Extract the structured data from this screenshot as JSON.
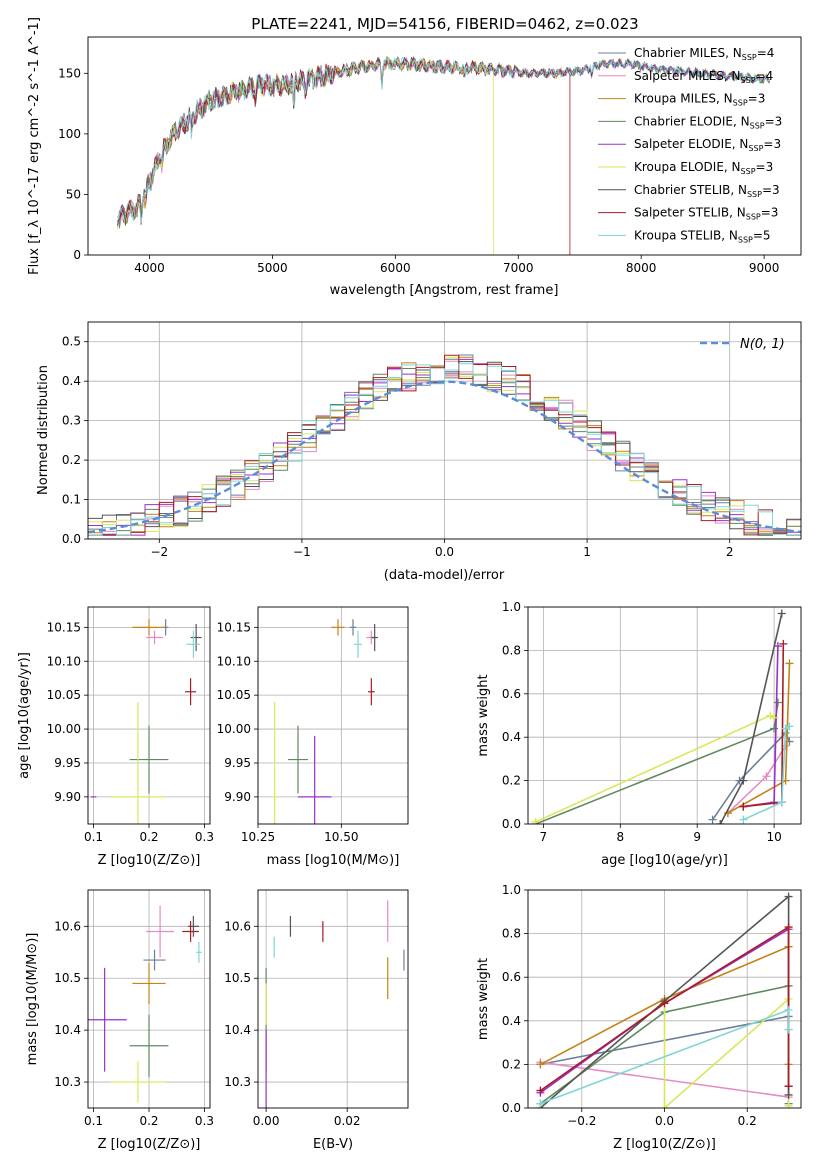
{
  "figure": {
    "title": "PLATE=2241, MJD=54156, FIBERID=0462, z=0.023"
  },
  "series": [
    {
      "name": "Chabrier MILES, N$_{SSP}$=4",
      "color": "#6c7f9a"
    },
    {
      "name": "Salpeter MILES, N$_{SSP}$=4",
      "color": "#e78ac3"
    },
    {
      "name": "Kroupa MILES, N$_{SSP}$=3",
      "color": "#c48316"
    },
    {
      "name": "Chabrier ELODIE, N$_{SSP}$=3",
      "color": "#5f8a5f"
    },
    {
      "name": "Salpeter ELODIE, N$_{SSP}$=3",
      "color": "#9b30c8"
    },
    {
      "name": "Kroupa ELODIE, N$_{SSP}$=3",
      "color": "#d9e85a"
    },
    {
      "name": "Chabrier STELIB, N$_{SSP}$=3",
      "color": "#555555"
    },
    {
      "name": "Salpeter STELIB, N$_{SSP}$=3",
      "color": "#a81c24"
    },
    {
      "name": "Kroupa STELIB, N$_{SSP}$=5",
      "color": "#7fd6d6"
    }
  ],
  "legend_labels": [
    {
      "pre": "Chabrier MILES, N",
      "sub": "SSP",
      "post": "=4"
    },
    {
      "pre": "Salpeter MILES, N",
      "sub": "SSP",
      "post": "=4"
    },
    {
      "pre": "Kroupa MILES, N",
      "sub": "SSP",
      "post": "=3"
    },
    {
      "pre": "Chabrier ELODIE, N",
      "sub": "SSP",
      "post": "=3"
    },
    {
      "pre": "Salpeter ELODIE, N",
      "sub": "SSP",
      "post": "=3"
    },
    {
      "pre": "Kroupa ELODIE, N",
      "sub": "SSP",
      "post": "=3"
    },
    {
      "pre": "Chabrier STELIB, N",
      "sub": "SSP",
      "post": "=3"
    },
    {
      "pre": "Salpeter STELIB, N",
      "sub": "SSP",
      "post": "=3"
    },
    {
      "pre": "Kroupa STELIB, N",
      "sub": "SSP",
      "post": "=5"
    }
  ],
  "chart_data": [
    {
      "id": "spectrum",
      "type": "line",
      "xlabel": "wavelength [Angstrom, rest frame]",
      "ylabel": "Flux [f_λ 10^-17 erg cm^-2 s^-1 A^-1]",
      "xlim": [
        3500,
        9300
      ],
      "ylim": [
        0,
        180
      ],
      "xticks": [
        4000,
        5000,
        6000,
        7000,
        8000,
        9000
      ],
      "yticks": [
        0,
        50,
        100,
        150
      ],
      "continuum": [
        [
          3740,
          30
        ],
        [
          3900,
          40
        ],
        [
          4000,
          60
        ],
        [
          4100,
          85
        ],
        [
          4200,
          100
        ],
        [
          4300,
          110
        ],
        [
          4400,
          120
        ],
        [
          4500,
          128
        ],
        [
          4700,
          135
        ],
        [
          4900,
          140
        ],
        [
          5100,
          140
        ],
        [
          5300,
          145
        ],
        [
          5500,
          150
        ],
        [
          5700,
          155
        ],
        [
          5900,
          158
        ],
        [
          6100,
          158
        ],
        [
          6300,
          156
        ],
        [
          6500,
          155
        ],
        [
          6700,
          154
        ],
        [
          6900,
          152
        ],
        [
          7100,
          150
        ],
        [
          7300,
          150
        ],
        [
          7500,
          152
        ],
        [
          7700,
          158
        ],
        [
          7900,
          158
        ],
        [
          8100,
          154
        ],
        [
          8300,
          152
        ],
        [
          8500,
          150
        ],
        [
          8700,
          148
        ],
        [
          8900,
          146
        ],
        [
          9050,
          145
        ]
      ],
      "dropouts": [
        {
          "series": "Kroupa ELODIE, N$_{SSP}$=3",
          "x": 6800
        },
        {
          "series": "Salpeter STELIB, N$_{SSP}$=3",
          "x": 7420
        }
      ]
    },
    {
      "id": "residuals",
      "type": "line",
      "xlabel": "(data-model)/error",
      "ylabel": "Normed distribution",
      "xlim": [
        -2.5,
        2.5
      ],
      "ylim": [
        0,
        0.55
      ],
      "xticks": [
        -2,
        -1,
        0,
        1,
        2
      ],
      "yticks": [
        0.0,
        0.1,
        0.2,
        0.3,
        0.4,
        0.5
      ],
      "grid": true,
      "gaussian_label": "N(0, 1)",
      "gaussian_color": "#5b8bd9",
      "bin_width": 0.1
    },
    {
      "id": "age_vs_Z",
      "type": "scatter",
      "xlabel": "Z [log10(Z/Z⊙)]",
      "ylabel": "age [log10(age/yr)]",
      "xlim": [
        0.09,
        0.31
      ],
      "ylim": [
        9.86,
        10.18
      ],
      "xticks": [
        0.1,
        0.2,
        0.3
      ],
      "yticks": [
        9.9,
        9.95,
        10.0,
        10.05,
        10.1,
        10.15
      ],
      "grid": true,
      "points": [
        {
          "x": 0.23,
          "y": 10.15,
          "xerr": 0.005,
          "yerr": 0.012
        },
        {
          "x": 0.21,
          "y": 10.135,
          "xerr": 0.015,
          "yerr": 0.01
        },
        {
          "x": 0.2,
          "y": 10.15,
          "xerr": 0.03,
          "yerr": 0.012
        },
        {
          "x": 0.2,
          "y": 9.955,
          "xerr": 0.035,
          "yerr": 0.05
        },
        {
          "x": 0.1,
          "y": 9.9,
          "xerr": 0.005,
          "yerr": 0.0
        },
        {
          "x": 0.18,
          "y": 9.9,
          "xerr": 0.05,
          "yerr": 0.14
        },
        {
          "x": 0.285,
          "y": 10.135,
          "xerr": 0.01,
          "yerr": 0.02
        },
        {
          "x": 0.275,
          "y": 10.055,
          "xerr": 0.01,
          "yerr": 0.02
        },
        {
          "x": 0.28,
          "y": 10.125,
          "xerr": 0.012,
          "yerr": 0.02
        }
      ]
    },
    {
      "id": "age_vs_mass",
      "type": "scatter",
      "xlabel": "mass [log10(M/M⊙)]",
      "ylabel": "",
      "xlim": [
        10.25,
        10.7
      ],
      "ylim": [
        9.86,
        10.18
      ],
      "xticks": [
        10.25,
        10.5
      ],
      "yticks": [
        9.9,
        9.95,
        10.0,
        10.05,
        10.1,
        10.15
      ],
      "grid": true,
      "points": [
        {
          "x": 10.535,
          "y": 10.15,
          "xerr": 0.01,
          "yerr": 0.012
        },
        {
          "x": 10.59,
          "y": 10.135,
          "xerr": 0.015,
          "yerr": 0.01
        },
        {
          "x": 10.49,
          "y": 10.15,
          "xerr": 0.02,
          "yerr": 0.012
        },
        {
          "x": 10.37,
          "y": 9.955,
          "xerr": 0.03,
          "yerr": 0.05
        },
        {
          "x": 10.42,
          "y": 9.9,
          "xerr": 0.05,
          "yerr": 0.09
        },
        {
          "x": 10.3,
          "y": 9.9,
          "xerr": 0.01,
          "yerr": 0.14
        },
        {
          "x": 10.6,
          "y": 10.135,
          "xerr": 0.01,
          "yerr": 0.02
        },
        {
          "x": 10.59,
          "y": 10.055,
          "xerr": 0.01,
          "yerr": 0.02
        },
        {
          "x": 10.55,
          "y": 10.125,
          "xerr": 0.012,
          "yerr": 0.02
        }
      ]
    },
    {
      "id": "weight_vs_age",
      "type": "line",
      "xlabel": "age [log10(age/yr)]",
      "ylabel": "mass weight",
      "xlim": [
        6.8,
        10.35
      ],
      "ylim": [
        0,
        1.0
      ],
      "xticks": [
        7,
        8,
        9,
        10
      ],
      "yticks": [
        0.0,
        0.2,
        0.4,
        0.6,
        0.8,
        1.0
      ],
      "grid": true,
      "lines": [
        [
          [
            9.2,
            0.02
          ],
          [
            9.55,
            0.2
          ],
          [
            10.15,
            0.42
          ],
          [
            10.2,
            0.38
          ]
        ],
        [
          [
            9.4,
            0.05
          ],
          [
            9.9,
            0.22
          ],
          [
            10.15,
            0.36
          ]
        ],
        [
          [
            9.4,
            0.05
          ],
          [
            10.15,
            0.2
          ],
          [
            10.2,
            0.74
          ]
        ],
        [
          [
            6.9,
            0.0
          ],
          [
            10.0,
            0.44
          ],
          [
            10.05,
            0.56
          ]
        ],
        [
          [
            9.6,
            0.08
          ],
          [
            10.0,
            0.1
          ],
          [
            10.05,
            0.82
          ]
        ],
        [
          [
            6.9,
            0.01
          ],
          [
            9.95,
            0.5
          ],
          [
            10.0,
            0.49
          ]
        ],
        [
          [
            9.3,
            0.0
          ],
          [
            9.6,
            0.2
          ],
          [
            10.1,
            0.97
          ]
        ],
        [
          [
            9.6,
            0.08
          ],
          [
            10.1,
            0.1
          ],
          [
            10.12,
            0.83
          ]
        ],
        [
          [
            9.6,
            0.02
          ],
          [
            10.1,
            0.1
          ],
          [
            10.15,
            0.44
          ],
          [
            10.2,
            0.45
          ]
        ]
      ]
    },
    {
      "id": "mass_vs_Z",
      "type": "scatter",
      "xlabel": "Z [log10(Z/Z⊙)]",
      "ylabel": "mass [log10(M/M⊙)]",
      "xlim": [
        0.09,
        0.31
      ],
      "ylim": [
        10.25,
        10.67
      ],
      "xticks": [
        0.1,
        0.2,
        0.3
      ],
      "yticks": [
        10.3,
        10.4,
        10.5,
        10.6
      ],
      "grid": true,
      "points": [
        {
          "x": 0.21,
          "y": 10.535,
          "xerr": 0.02,
          "yerr": 0.02
        },
        {
          "x": 0.22,
          "y": 10.59,
          "xerr": 0.025,
          "yerr": 0.05
        },
        {
          "x": 0.2,
          "y": 10.49,
          "xerr": 0.03,
          "yerr": 0.04
        },
        {
          "x": 0.2,
          "y": 10.37,
          "xerr": 0.035,
          "yerr": 0.06
        },
        {
          "x": 0.12,
          "y": 10.42,
          "xerr": 0.04,
          "yerr": 0.1
        },
        {
          "x": 0.18,
          "y": 10.3,
          "xerr": 0.05,
          "yerr": 0.04
        },
        {
          "x": 0.28,
          "y": 10.6,
          "xerr": 0.01,
          "yerr": 0.02
        },
        {
          "x": 0.275,
          "y": 10.59,
          "xerr": 0.015,
          "yerr": 0.02
        },
        {
          "x": 0.29,
          "y": 10.55,
          "xerr": 0.005,
          "yerr": 0.02
        }
      ]
    },
    {
      "id": "mass_vs_ebv",
      "type": "scatter",
      "xlabel": "E(B-V)",
      "ylabel": "",
      "xlim": [
        -0.002,
        0.035
      ],
      "ylim": [
        10.25,
        10.67
      ],
      "xticks": [
        0.0,
        0.02
      ],
      "yticks": [
        10.3,
        10.4,
        10.5,
        10.6
      ],
      "grid": true,
      "points": [
        {
          "x": 0.034,
          "y": 10.535,
          "xerr": 0,
          "yerr": 0.02
        },
        {
          "x": 0.03,
          "y": 10.61,
          "xerr": 0,
          "yerr": 0.04
        },
        {
          "x": 0.03,
          "y": 10.5,
          "xerr": 0,
          "yerr": 0.04
        },
        {
          "x": 0.0,
          "y": 10.42,
          "xerr": 0,
          "yerr": 0.1
        },
        {
          "x": 0.0,
          "y": 10.3,
          "xerr": 0,
          "yerr": 0.1
        },
        {
          "x": 0.0,
          "y": 10.45,
          "xerr": 0,
          "yerr": 0.04
        },
        {
          "x": 0.006,
          "y": 10.6,
          "xerr": 0,
          "yerr": 0.02
        },
        {
          "x": 0.014,
          "y": 10.59,
          "xerr": 0,
          "yerr": 0.02
        },
        {
          "x": 0.002,
          "y": 10.56,
          "xerr": 0,
          "yerr": 0.02
        }
      ]
    },
    {
      "id": "weight_vs_Z",
      "type": "line",
      "xlabel": "Z [log10(Z/Z⊙)]",
      "ylabel": "mass weight",
      "xlim": [
        -0.33,
        0.33
      ],
      "ylim": [
        0,
        1.0
      ],
      "xticks": [
        -0.2,
        0.0,
        0.2
      ],
      "yticks": [
        0.0,
        0.2,
        0.4,
        0.6,
        0.8,
        1.0
      ],
      "grid": true,
      "lines": [
        [
          [
            -0.3,
            0.2
          ],
          [
            0.3,
            0.42
          ],
          [
            0.3,
            0.02
          ]
        ],
        [
          [
            -0.3,
            0.21
          ],
          [
            0.3,
            0.05
          ],
          [
            0.3,
            0.36
          ]
        ],
        [
          [
            -0.3,
            0.2
          ],
          [
            0.0,
            0.5
          ],
          [
            0.3,
            0.74
          ],
          [
            0.3,
            0.2
          ]
        ],
        [
          [
            -0.3,
            0.02
          ],
          [
            0.0,
            0.44
          ],
          [
            0.3,
            0.56
          ],
          [
            0.3,
            0.1
          ]
        ],
        [
          [
            -0.3,
            0.07
          ],
          [
            0.0,
            0.48
          ],
          [
            0.3,
            0.82
          ],
          [
            0.3,
            0.1
          ]
        ],
        [
          [
            0.0,
            0.49
          ],
          [
            0.0,
            0.0
          ],
          [
            0.3,
            0.5
          ],
          [
            0.3,
            0.01
          ]
        ],
        [
          [
            -0.3,
            0.0
          ],
          [
            0.0,
            0.49
          ],
          [
            0.3,
            0.97
          ],
          [
            0.3,
            0.06
          ]
        ],
        [
          [
            -0.3,
            0.08
          ],
          [
            0.0,
            0.48
          ],
          [
            0.3,
            0.83
          ],
          [
            0.3,
            0.1
          ]
        ],
        [
          [
            -0.3,
            0.02
          ],
          [
            0.3,
            0.45
          ],
          [
            0.3,
            0.36
          ]
        ]
      ]
    }
  ]
}
